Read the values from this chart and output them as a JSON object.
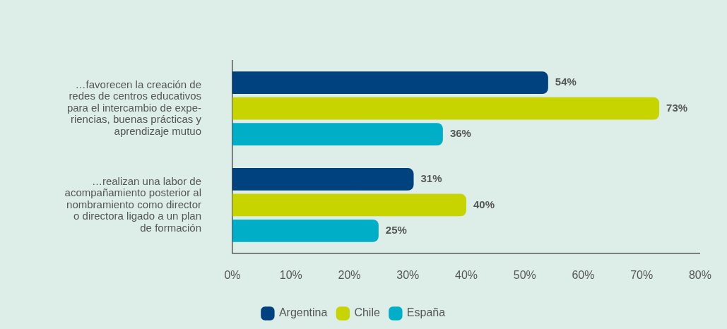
{
  "chart_data": {
    "type": "bar",
    "orientation": "horizontal",
    "categories": [
      "…favorecen la creación de\nredes de centros educativos\npara el intercambio de expe-\nriencias, buenas prácticas y\naprendizaje mutuo",
      "…realizan una labor de\nacompañamiento posterior al\nnombramiento como director\no directora ligado a un plan\nde formación"
    ],
    "series": [
      {
        "name": "Argentina",
        "color": "#00427f",
        "values": [
          54,
          31
        ],
        "value_labels": [
          "54%",
          "31%"
        ]
      },
      {
        "name": "Chile",
        "color": "#c8d400",
        "values": [
          73,
          40
        ],
        "value_labels": [
          "73%",
          "40%"
        ]
      },
      {
        "name": "España",
        "color": "#00aec7",
        "values": [
          36,
          25
        ],
        "value_labels": [
          "36%",
          "25%"
        ]
      }
    ],
    "xlim": [
      0,
      80
    ],
    "xticks": [
      {
        "value": 0,
        "label": "0%"
      },
      {
        "value": 10,
        "label": "10%"
      },
      {
        "value": 20,
        "label": "20%"
      },
      {
        "value": 30,
        "label": "30%"
      },
      {
        "value": 40,
        "label": "40%"
      },
      {
        "value": 50,
        "label": "50%"
      },
      {
        "value": 60,
        "label": "60%"
      },
      {
        "value": 70,
        "label": "70%"
      },
      {
        "value": 80,
        "label": "80%"
      }
    ],
    "grid": false,
    "legend": "bottom"
  }
}
